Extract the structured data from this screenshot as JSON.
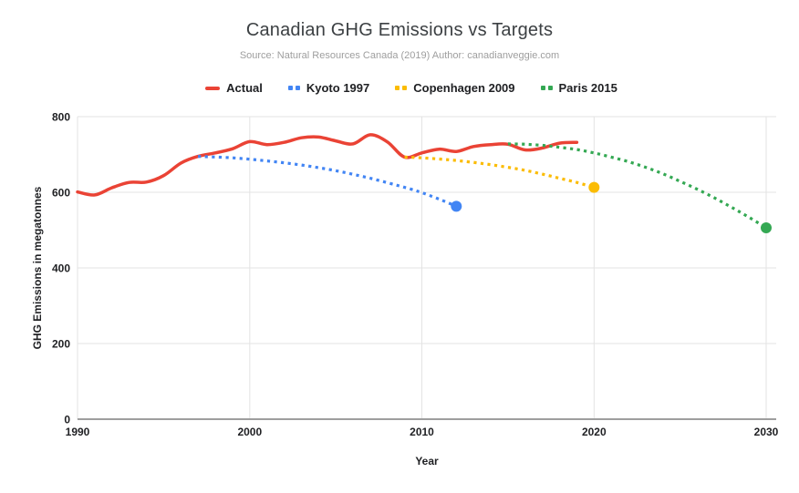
{
  "chart_data": {
    "type": "line",
    "title": "Canadian GHG Emissions vs Targets",
    "subtitle": "Source: Natural Resources Canada (2019) Author: canadianveggie.com",
    "xlabel": "Year",
    "ylabel": "GHG Emissions in megatonnes",
    "xlim": [
      1990,
      2030
    ],
    "ylim": [
      0,
      800
    ],
    "xticks": [
      1990,
      2000,
      2010,
      2020,
      2030
    ],
    "yticks": [
      0,
      200,
      400,
      600,
      800
    ],
    "grid": true,
    "legend": {
      "position": "top",
      "entries": [
        {
          "label": "Actual",
          "color": "#ea4335",
          "style": "solid"
        },
        {
          "label": "Kyoto 1997",
          "color": "#4285f4",
          "style": "dotted"
        },
        {
          "label": "Copenhagen 2009",
          "color": "#fbbc04",
          "style": "dotted"
        },
        {
          "label": "Paris 2015",
          "color": "#34a853",
          "style": "dotted"
        }
      ]
    },
    "series": [
      {
        "name": "Actual",
        "color": "#ea4335",
        "style": "solid",
        "endpoint_marker": false,
        "points": [
          [
            1990,
            601
          ],
          [
            1991,
            593
          ],
          [
            1992,
            612
          ],
          [
            1993,
            626
          ],
          [
            1994,
            627
          ],
          [
            1995,
            644
          ],
          [
            1996,
            677
          ],
          [
            1997,
            695
          ],
          [
            1998,
            704
          ],
          [
            1999,
            715
          ],
          [
            2000,
            734
          ],
          [
            2001,
            726
          ],
          [
            2002,
            732
          ],
          [
            2003,
            744
          ],
          [
            2004,
            746
          ],
          [
            2005,
            736
          ],
          [
            2006,
            728
          ],
          [
            2007,
            752
          ],
          [
            2008,
            733
          ],
          [
            2009,
            693
          ],
          [
            2010,
            704
          ],
          [
            2011,
            714
          ],
          [
            2012,
            708
          ],
          [
            2013,
            721
          ],
          [
            2014,
            726
          ],
          [
            2015,
            727
          ],
          [
            2016,
            712
          ],
          [
            2017,
            717
          ],
          [
            2018,
            730
          ],
          [
            2019,
            732
          ]
        ]
      },
      {
        "name": "Kyoto 1997",
        "color": "#4285f4",
        "style": "dotted",
        "endpoint_marker": true,
        "points": [
          [
            1997,
            695
          ],
          [
            1999,
            691
          ],
          [
            2001,
            683
          ],
          [
            2003,
            672
          ],
          [
            2005,
            657
          ],
          [
            2007,
            637
          ],
          [
            2009,
            613
          ],
          [
            2010,
            599
          ],
          [
            2011,
            582
          ],
          [
            2012,
            563
          ]
        ]
      },
      {
        "name": "Copenhagen 2009",
        "color": "#fbbc04",
        "style": "dotted",
        "endpoint_marker": true,
        "points": [
          [
            2009,
            693
          ],
          [
            2010,
            691
          ],
          [
            2011,
            688
          ],
          [
            2012,
            684
          ],
          [
            2013,
            679
          ],
          [
            2014,
            673
          ],
          [
            2015,
            666
          ],
          [
            2016,
            658
          ],
          [
            2017,
            648
          ],
          [
            2018,
            637
          ],
          [
            2019,
            626
          ],
          [
            2020,
            613
          ]
        ]
      },
      {
        "name": "Paris 2015",
        "color": "#34a853",
        "style": "dotted",
        "endpoint_marker": true,
        "points": [
          [
            2015,
            728
          ],
          [
            2016,
            727
          ],
          [
            2017,
            724
          ],
          [
            2018,
            719
          ],
          [
            2019,
            713
          ],
          [
            2020,
            704
          ],
          [
            2021,
            693
          ],
          [
            2022,
            681
          ],
          [
            2023,
            666
          ],
          [
            2024,
            649
          ],
          [
            2025,
            629
          ],
          [
            2026,
            608
          ],
          [
            2027,
            585
          ],
          [
            2028,
            560
          ],
          [
            2029,
            534
          ],
          [
            2030,
            506
          ]
        ]
      }
    ],
    "axis_colors": {
      "gridline": "#e3e3e3",
      "baseline": "#9e9e9e"
    }
  }
}
